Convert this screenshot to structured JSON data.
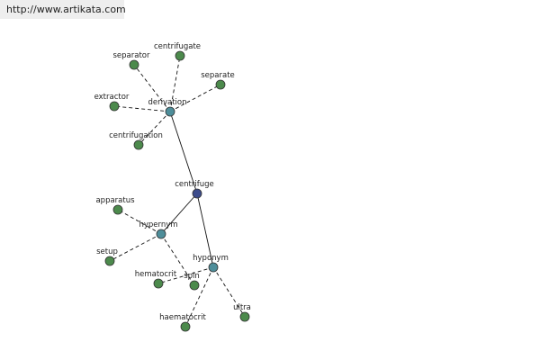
{
  "header": {
    "url": "http://www.artikata.com"
  },
  "nodes": [
    {
      "label": "centrifuge"
    },
    {
      "label": "derivation"
    },
    {
      "label": "hypernym"
    },
    {
      "label": "hyponym"
    },
    {
      "label": "separator"
    },
    {
      "label": "centrifugate"
    },
    {
      "label": "separate"
    },
    {
      "label": "extractor"
    },
    {
      "label": "centrifugation"
    },
    {
      "label": "apparatus"
    },
    {
      "label": "setup"
    },
    {
      "label": "spin"
    },
    {
      "label": "hematocrit"
    },
    {
      "label": "haematocrit"
    },
    {
      "label": "ultra"
    }
  ]
}
